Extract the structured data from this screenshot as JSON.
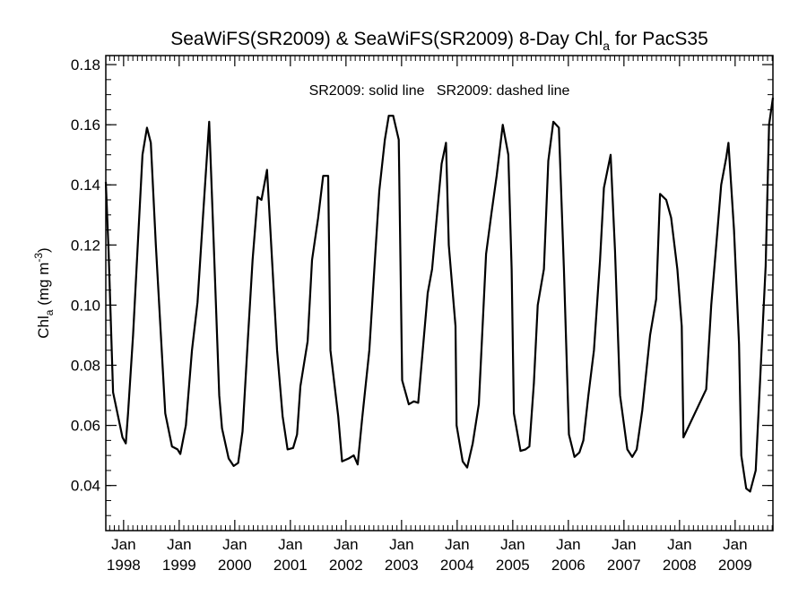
{
  "chart_data": {
    "type": "line",
    "title": {
      "prefix": "SeaWiFS(SR2009) & SeaWiFS(SR2009) 8-Day Chl",
      "subscript": "a",
      "suffix": " for PacS35"
    },
    "legend_text": "SR2009: solid line   SR2009: dashed line",
    "ylabel": {
      "main": "Chl",
      "subscript": "a",
      "units": " (mg m",
      "superscript": "-3",
      "close": ")"
    },
    "ylim": [
      0.025,
      0.183
    ],
    "xlim": [
      1997.68,
      2009.68
    ],
    "y_ticks": [
      {
        "value": 0.04,
        "label": "0.04"
      },
      {
        "value": 0.06,
        "label": "0.06"
      },
      {
        "value": 0.08,
        "label": "0.08"
      },
      {
        "value": 0.1,
        "label": "0.10"
      },
      {
        "value": 0.12,
        "label": "0.12"
      },
      {
        "value": 0.14,
        "label": "0.14"
      },
      {
        "value": 0.16,
        "label": "0.16"
      },
      {
        "value": 0.18,
        "label": "0.18"
      }
    ],
    "x_ticks": [
      {
        "value": 1998,
        "month": "Jan",
        "year": "1998"
      },
      {
        "value": 1999,
        "month": "Jan",
        "year": "1999"
      },
      {
        "value": 2000,
        "month": "Jan",
        "year": "2000"
      },
      {
        "value": 2001,
        "month": "Jan",
        "year": "2001"
      },
      {
        "value": 2002,
        "month": "Jan",
        "year": "2002"
      },
      {
        "value": 2003,
        "month": "Jan",
        "year": "2003"
      },
      {
        "value": 2004,
        "month": "Jan",
        "year": "2004"
      },
      {
        "value": 2005,
        "month": "Jan",
        "year": "2005"
      },
      {
        "value": 2006,
        "month": "Jan",
        "year": "2006"
      },
      {
        "value": 2007,
        "month": "Jan",
        "year": "2007"
      },
      {
        "value": 2008,
        "month": "Jan",
        "year": "2008"
      },
      {
        "value": 2009,
        "month": "Jan",
        "year": "2009"
      }
    ],
    "grid": false,
    "series": [
      {
        "style": "solid",
        "color": "#000000",
        "points": [
          [
            1997.68,
            0.141
          ],
          [
            1997.73,
            0.118
          ],
          [
            1997.81,
            0.071
          ],
          [
            1997.98,
            0.056
          ],
          [
            1998.04,
            0.054
          ],
          [
            1998.08,
            0.064
          ],
          [
            1998.17,
            0.09
          ],
          [
            1998.34,
            0.15
          ],
          [
            1998.42,
            0.159
          ],
          [
            1998.49,
            0.154
          ],
          [
            1998.58,
            0.12
          ],
          [
            1998.75,
            0.064
          ],
          [
            1998.87,
            0.053
          ],
          [
            1998.97,
            0.052
          ],
          [
            1999.02,
            0.0505
          ],
          [
            1999.12,
            0.06
          ],
          [
            1999.23,
            0.085
          ],
          [
            1999.33,
            0.101
          ],
          [
            1999.43,
            0.13
          ],
          [
            1999.54,
            0.161
          ],
          [
            1999.62,
            0.121
          ],
          [
            1999.72,
            0.07
          ],
          [
            1999.77,
            0.059
          ],
          [
            1999.89,
            0.049
          ],
          [
            1999.98,
            0.0465
          ],
          [
            2000.06,
            0.0475
          ],
          [
            2000.14,
            0.058
          ],
          [
            2000.24,
            0.09
          ],
          [
            2000.32,
            0.115
          ],
          [
            2000.41,
            0.136
          ],
          [
            2000.48,
            0.135
          ],
          [
            2000.58,
            0.145
          ],
          [
            2000.67,
            0.115
          ],
          [
            2000.76,
            0.085
          ],
          [
            2000.86,
            0.063
          ],
          [
            2000.95,
            0.052
          ],
          [
            2001.05,
            0.0525
          ],
          [
            2001.12,
            0.057
          ],
          [
            2001.18,
            0.073
          ],
          [
            2001.31,
            0.088
          ],
          [
            2001.39,
            0.115
          ],
          [
            2001.5,
            0.129
          ],
          [
            2001.59,
            0.143
          ],
          [
            2001.68,
            0.143
          ],
          [
            2001.72,
            0.085
          ],
          [
            2001.86,
            0.063
          ],
          [
            2001.93,
            0.048
          ],
          [
            2002.05,
            0.049
          ],
          [
            2002.14,
            0.05
          ],
          [
            2002.21,
            0.047
          ],
          [
            2002.29,
            0.062
          ],
          [
            2002.42,
            0.085
          ],
          [
            2002.52,
            0.115
          ],
          [
            2002.6,
            0.138
          ],
          [
            2002.7,
            0.155
          ],
          [
            2002.77,
            0.163
          ],
          [
            2002.85,
            0.163
          ],
          [
            2002.95,
            0.155
          ],
          [
            2003.01,
            0.075
          ],
          [
            2003.13,
            0.067
          ],
          [
            2003.22,
            0.068
          ],
          [
            2003.3,
            0.0675
          ],
          [
            2003.47,
            0.104
          ],
          [
            2003.55,
            0.112
          ],
          [
            2003.72,
            0.147
          ],
          [
            2003.8,
            0.154
          ],
          [
            2003.85,
            0.12
          ],
          [
            2003.97,
            0.093
          ],
          [
            2003.99,
            0.06
          ],
          [
            2004.1,
            0.048
          ],
          [
            2004.18,
            0.046
          ],
          [
            2004.28,
            0.054
          ],
          [
            2004.39,
            0.067
          ],
          [
            2004.52,
            0.117
          ],
          [
            2004.62,
            0.131
          ],
          [
            2004.71,
            0.143
          ],
          [
            2004.82,
            0.16
          ],
          [
            2004.92,
            0.15
          ],
          [
            2004.98,
            0.112
          ],
          [
            2005.02,
            0.064
          ],
          [
            2005.14,
            0.0515
          ],
          [
            2005.23,
            0.052
          ],
          [
            2005.3,
            0.053
          ],
          [
            2005.38,
            0.074
          ],
          [
            2005.45,
            0.1
          ],
          [
            2005.56,
            0.112
          ],
          [
            2005.64,
            0.148
          ],
          [
            2005.73,
            0.161
          ],
          [
            2005.83,
            0.159
          ],
          [
            2005.92,
            0.112
          ],
          [
            2006.01,
            0.057
          ],
          [
            2006.11,
            0.0495
          ],
          [
            2006.2,
            0.051
          ],
          [
            2006.27,
            0.055
          ],
          [
            2006.36,
            0.07
          ],
          [
            2006.46,
            0.085
          ],
          [
            2006.57,
            0.115
          ],
          [
            2006.64,
            0.139
          ],
          [
            2006.76,
            0.15
          ],
          [
            2006.84,
            0.118
          ],
          [
            2006.93,
            0.07
          ],
          [
            2007.06,
            0.052
          ],
          [
            2007.15,
            0.0495
          ],
          [
            2007.23,
            0.052
          ],
          [
            2007.33,
            0.065
          ],
          [
            2007.47,
            0.09
          ],
          [
            2007.58,
            0.102
          ],
          [
            2007.65,
            0.137
          ],
          [
            2007.76,
            0.135
          ],
          [
            2007.85,
            0.129
          ],
          [
            2007.96,
            0.112
          ],
          [
            2008.04,
            0.093
          ],
          [
            2008.07,
            0.056
          ],
          [
            2008.48,
            0.072
          ],
          [
            2008.57,
            0.1
          ],
          [
            2008.66,
            0.12
          ],
          [
            2008.75,
            0.14
          ],
          [
            2008.84,
            0.149
          ],
          [
            2008.88,
            0.154
          ],
          [
            2008.98,
            0.125
          ],
          [
            2009.07,
            0.087
          ],
          [
            2009.11,
            0.05
          ],
          [
            2009.2,
            0.039
          ],
          [
            2009.27,
            0.038
          ],
          [
            2009.37,
            0.045
          ],
          [
            2009.45,
            0.075
          ],
          [
            2009.55,
            0.113
          ],
          [
            2009.61,
            0.16
          ],
          [
            2009.68,
            0.169
          ]
        ]
      }
    ]
  }
}
